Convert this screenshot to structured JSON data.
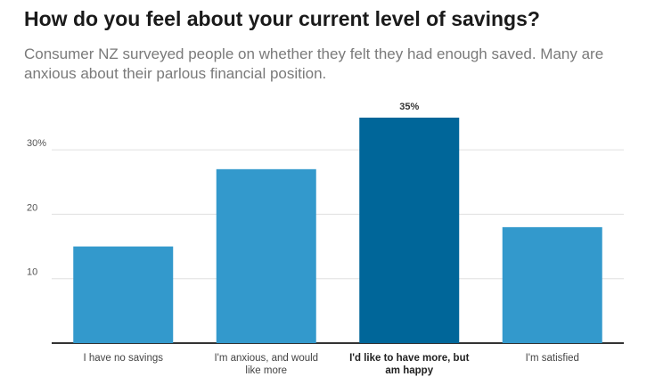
{
  "chart_data": {
    "type": "bar",
    "title": "How do you feel about your current level of savings?",
    "subtitle": "Consumer NZ surveyed people on whether they felt they had enough saved. Many are anxious about their parlous financial position.",
    "categories": [
      [
        "I have no savings"
      ],
      [
        "I'm anxious, and would",
        "like more"
      ],
      [
        "I'd like to have more, but",
        "am happy"
      ],
      [
        "I'm satisfied"
      ]
    ],
    "values": [
      15,
      27,
      35,
      18
    ],
    "highlight_index": 2,
    "data_labels": [
      "",
      "",
      "35%",
      ""
    ],
    "yticks": [
      {
        "value": 10,
        "label": "10"
      },
      {
        "value": 20,
        "label": "20"
      },
      {
        "value": 30,
        "label": "30%"
      }
    ],
    "ylim": [
      0,
      35
    ],
    "xlabel": "",
    "ylabel": "",
    "grid": true,
    "colors": {
      "bar": "#3399cc",
      "highlight": "#006699",
      "grid": "#e0e0e0",
      "axis": "#333333"
    }
  }
}
